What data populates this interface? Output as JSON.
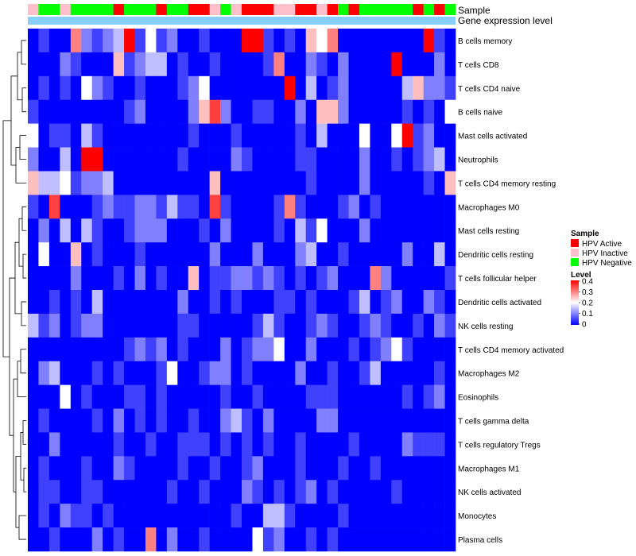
{
  "chart_data": {
    "type": "heatmap",
    "annotation_tracks": [
      {
        "name": "Sample"
      },
      {
        "name": "Gene expression level"
      }
    ],
    "rows": [
      "B cells memory",
      "T cells CD8",
      "T cells CD4 naive",
      "B cells naive",
      "Mast cells activated",
      "Neutrophils",
      "T cells CD4 memory resting",
      "Macrophages M0",
      "Mast cells resting",
      "Dendritic cells resting",
      "T cells follicular helper",
      "Dendritic cells activated",
      "NK cells resting",
      "T cells CD4 memory activated",
      "Macrophages M2",
      "Eosinophils",
      "T cells gamma delta",
      "T cells regulatory  Tregs",
      "Macrophages M1",
      "NK cells activated",
      "Monocytes",
      "Plasma cells"
    ],
    "sample_groups": [
      "I",
      "N",
      "N",
      "I",
      "N",
      "N",
      "N",
      "N",
      "A",
      "N",
      "N",
      "N",
      "A",
      "N",
      "N",
      "A",
      "A",
      "I",
      "N",
      "I",
      "A",
      "A",
      "A",
      "I",
      "I",
      "A",
      "A",
      "I",
      "A",
      "N",
      "A",
      "N",
      "N",
      "N",
      "N",
      "N",
      "A",
      "N",
      "A",
      "N"
    ],
    "values": [
      [
        0.0,
        0.05,
        0.0,
        0.0,
        0.3,
        0.1,
        0.05,
        0.1,
        0.15,
        0.4,
        0.05,
        0.2,
        0.05,
        0.1,
        0.0,
        0.0,
        0.05,
        0.0,
        0.0,
        0.0,
        0.4,
        0.4,
        0.05,
        0.0,
        0.05,
        0.0,
        0.25,
        0.2,
        0.3,
        0.0,
        0.0,
        0.0,
        0.0,
        0.0,
        0.0,
        0.0,
        0.0,
        0.4,
        0.05,
        0.0
      ],
      [
        0.0,
        0.0,
        0.0,
        0.1,
        0.05,
        0.0,
        0.0,
        0.0,
        0.25,
        0.05,
        0.1,
        0.15,
        0.15,
        0.0,
        0.05,
        0.0,
        0.0,
        0.05,
        0.0,
        0.0,
        0.0,
        0.0,
        0.05,
        0.3,
        0.0,
        0.0,
        0.1,
        0.05,
        0.0,
        0.1,
        0.0,
        0.0,
        0.0,
        0.0,
        0.4,
        0.0,
        0.0,
        0.0,
        0.1,
        0.0
      ],
      [
        0.0,
        0.05,
        0.0,
        0.05,
        0.0,
        0.2,
        0.1,
        0.05,
        0.0,
        0.0,
        0.05,
        0.0,
        0.0,
        0.0,
        0.05,
        0.1,
        0.2,
        0.0,
        0.0,
        0.0,
        0.0,
        0.0,
        0.0,
        0.0,
        0.4,
        0.0,
        0.15,
        0.0,
        0.05,
        0.1,
        0.0,
        0.0,
        0.0,
        0.0,
        0.0,
        0.15,
        0.25,
        0.1,
        0.1,
        0.05
      ],
      [
        0.05,
        0.0,
        0.0,
        0.0,
        0.0,
        0.0,
        0.0,
        0.0,
        0.0,
        0.05,
        0.1,
        0.0,
        0.0,
        0.0,
        0.0,
        0.1,
        0.25,
        0.35,
        0.1,
        0.0,
        0.0,
        0.05,
        0.05,
        0.0,
        0.0,
        0.1,
        0.0,
        0.25,
        0.25,
        0.1,
        0.0,
        0.0,
        0.0,
        0.0,
        0.0,
        0.05,
        0.0,
        0.05,
        0.0,
        0.2
      ],
      [
        0.2,
        0.0,
        0.05,
        0.05,
        0.0,
        0.15,
        0.05,
        0.0,
        0.0,
        0.0,
        0.0,
        0.0,
        0.0,
        0.0,
        0.0,
        0.05,
        0.0,
        0.0,
        0.0,
        0.05,
        0.0,
        0.0,
        0.0,
        0.0,
        0.0,
        0.05,
        0.0,
        0.15,
        0.0,
        0.0,
        0.0,
        0.2,
        0.0,
        0.0,
        0.2,
        0.4,
        0.05,
        0.1,
        0.0,
        0.0
      ],
      [
        0.1,
        0.0,
        0.0,
        0.15,
        0.0,
        0.4,
        0.4,
        0.0,
        0.0,
        0.0,
        0.0,
        0.0,
        0.0,
        0.0,
        0.05,
        0.0,
        0.0,
        0.0,
        0.0,
        0.1,
        0.05,
        0.0,
        0.0,
        0.0,
        0.0,
        0.05,
        0.05,
        0.0,
        0.0,
        0.0,
        0.0,
        0.1,
        0.0,
        0.0,
        0.05,
        0.0,
        0.05,
        0.1,
        0.15,
        0.0
      ],
      [
        0.25,
        0.15,
        0.15,
        0.2,
        0.05,
        0.1,
        0.1,
        0.15,
        0.0,
        0.0,
        0.0,
        0.0,
        0.0,
        0.0,
        0.0,
        0.0,
        0.0,
        0.25,
        0.0,
        0.0,
        0.0,
        0.0,
        0.0,
        0.0,
        0.0,
        0.0,
        0.05,
        0.0,
        0.0,
        0.0,
        0.0,
        0.1,
        0.0,
        0.0,
        0.0,
        0.0,
        0.0,
        0.05,
        0.0,
        0.25
      ],
      [
        0.05,
        0.0,
        0.35,
        0.0,
        0.0,
        0.0,
        0.05,
        0.1,
        0.05,
        0.05,
        0.1,
        0.1,
        0.05,
        0.15,
        0.05,
        0.05,
        0.0,
        0.35,
        0.05,
        0.0,
        0.0,
        0.0,
        0.0,
        0.05,
        0.3,
        0.05,
        0.0,
        0.0,
        0.0,
        0.05,
        0.1,
        0.0,
        0.05,
        0.0,
        0.0,
        0.0,
        0.0,
        0.0,
        0.0,
        0.0
      ],
      [
        0.0,
        0.1,
        0.0,
        0.15,
        0.0,
        0.15,
        0.05,
        0.0,
        0.0,
        0.05,
        0.1,
        0.1,
        0.1,
        0.0,
        0.0,
        0.0,
        0.05,
        0.0,
        0.1,
        0.0,
        0.0,
        0.0,
        0.0,
        0.05,
        0.0,
        0.15,
        0.05,
        0.2,
        0.0,
        0.0,
        0.0,
        0.1,
        0.0,
        0.0,
        0.0,
        0.0,
        0.0,
        0.0,
        0.0,
        0.0
      ],
      [
        0.0,
        0.2,
        0.0,
        0.0,
        0.25,
        0.0,
        0.05,
        0.0,
        0.0,
        0.0,
        0.05,
        0.0,
        0.0,
        0.0,
        0.0,
        0.0,
        0.0,
        0.1,
        0.0,
        0.0,
        0.0,
        0.1,
        0.0,
        0.0,
        0.0,
        0.1,
        0.15,
        0.0,
        0.0,
        0.05,
        0.0,
        0.0,
        0.0,
        0.0,
        0.0,
        0.1,
        0.0,
        0.0,
        0.15,
        0.0
      ],
      [
        0.0,
        0.0,
        0.0,
        0.0,
        0.1,
        0.0,
        0.0,
        0.0,
        0.05,
        0.0,
        0.1,
        0.0,
        0.05,
        0.0,
        0.0,
        0.25,
        0.0,
        0.05,
        0.05,
        0.1,
        0.1,
        0.05,
        0.1,
        0.05,
        0.0,
        0.05,
        0.0,
        0.05,
        0.1,
        0.0,
        0.0,
        0.0,
        0.3,
        0.1,
        0.0,
        0.0,
        0.0,
        0.0,
        0.0,
        0.05
      ],
      [
        0.0,
        0.0,
        0.05,
        0.0,
        0.05,
        0.0,
        0.15,
        0.0,
        0.0,
        0.0,
        0.0,
        0.0,
        0.0,
        0.0,
        0.1,
        0.0,
        0.0,
        0.05,
        0.0,
        0.05,
        0.0,
        0.0,
        0.0,
        0.05,
        0.05,
        0.0,
        0.05,
        0.0,
        0.0,
        0.0,
        0.05,
        0.15,
        0.0,
        0.05,
        0.1,
        0.0,
        0.0,
        0.1,
        0.05,
        0.0
      ],
      [
        0.15,
        0.05,
        0.1,
        0.0,
        0.05,
        0.1,
        0.1,
        0.0,
        0.0,
        0.0,
        0.0,
        0.0,
        0.0,
        0.0,
        0.05,
        0.05,
        0.0,
        0.0,
        0.0,
        0.0,
        0.0,
        0.05,
        0.15,
        0.05,
        0.0,
        0.0,
        0.05,
        0.1,
        0.05,
        0.0,
        0.0,
        0.05,
        0.1,
        0.05,
        0.0,
        0.0,
        0.05,
        0.0,
        0.1,
        0.05
      ],
      [
        0.0,
        0.0,
        0.0,
        0.0,
        0.0,
        0.0,
        0.0,
        0.0,
        0.0,
        0.05,
        0.1,
        0.05,
        0.1,
        0.0,
        0.05,
        0.0,
        0.0,
        0.0,
        0.1,
        0.0,
        0.05,
        0.1,
        0.1,
        0.2,
        0.0,
        0.0,
        0.1,
        0.0,
        0.0,
        0.0,
        0.05,
        0.0,
        0.05,
        0.1,
        0.2,
        0.05,
        0.0,
        0.0,
        0.0,
        0.0
      ],
      [
        0.0,
        0.1,
        0.15,
        0.0,
        0.0,
        0.0,
        0.05,
        0.0,
        0.05,
        0.0,
        0.0,
        0.0,
        0.05,
        0.2,
        0.0,
        0.0,
        0.05,
        0.1,
        0.1,
        0.0,
        0.05,
        0.0,
        0.0,
        0.0,
        0.0,
        0.1,
        0.0,
        0.0,
        0.05,
        0.0,
        0.0,
        0.05,
        0.15,
        0.0,
        0.0,
        0.0,
        0.0,
        0.0,
        0.05,
        0.0
      ],
      [
        0.0,
        0.0,
        0.0,
        0.2,
        0.0,
        0.05,
        0.0,
        0.0,
        0.0,
        0.05,
        0.05,
        0.0,
        0.05,
        0.0,
        0.0,
        0.0,
        0.0,
        0.0,
        0.05,
        0.0,
        0.0,
        0.05,
        0.0,
        0.0,
        0.0,
        0.0,
        0.05,
        0.05,
        0.05,
        0.0,
        0.0,
        0.0,
        0.0,
        0.0,
        0.0,
        0.05,
        0.0,
        0.05,
        0.1,
        0.0
      ],
      [
        0.0,
        0.05,
        0.0,
        0.0,
        0.0,
        0.0,
        0.05,
        0.0,
        0.1,
        0.0,
        0.05,
        0.0,
        0.05,
        0.0,
        0.0,
        0.05,
        0.0,
        0.0,
        0.1,
        0.15,
        0.05,
        0.0,
        0.1,
        0.0,
        0.0,
        0.0,
        0.0,
        0.1,
        0.1,
        0.0,
        0.0,
        0.0,
        0.0,
        0.0,
        0.0,
        0.0,
        0.0,
        0.0,
        0.0,
        0.0
      ],
      [
        0.0,
        0.0,
        0.1,
        0.0,
        0.0,
        0.0,
        0.0,
        0.0,
        0.05,
        0.0,
        0.0,
        0.05,
        0.0,
        0.0,
        0.05,
        0.05,
        0.05,
        0.0,
        0.05,
        0.0,
        0.05,
        0.0,
        0.05,
        0.0,
        0.0,
        0.05,
        0.0,
        0.0,
        0.0,
        0.0,
        0.05,
        0.0,
        0.0,
        0.0,
        0.0,
        0.1,
        0.05,
        0.05,
        0.05,
        0.0
      ],
      [
        0.0,
        0.05,
        0.0,
        0.0,
        0.0,
        0.05,
        0.0,
        0.0,
        0.1,
        0.05,
        0.0,
        0.0,
        0.0,
        0.0,
        0.05,
        0.0,
        0.0,
        0.05,
        0.0,
        0.0,
        0.05,
        0.1,
        0.0,
        0.0,
        0.0,
        0.05,
        0.0,
        0.0,
        0.0,
        0.05,
        0.0,
        0.0,
        0.05,
        0.0,
        0.0,
        0.0,
        0.0,
        0.0,
        0.0,
        0.0
      ],
      [
        0.0,
        0.05,
        0.05,
        0.0,
        0.0,
        0.05,
        0.05,
        0.0,
        0.0,
        0.0,
        0.0,
        0.0,
        0.0,
        0.05,
        0.0,
        0.0,
        0.05,
        0.0,
        0.0,
        0.0,
        0.1,
        0.05,
        0.0,
        0.05,
        0.0,
        0.05,
        0.1,
        0.0,
        0.05,
        0.0,
        0.0,
        0.0,
        0.0,
        0.0,
        0.05,
        0.0,
        0.0,
        0.0,
        0.0,
        0.0
      ],
      [
        0.0,
        0.05,
        0.0,
        0.1,
        0.05,
        0.05,
        0.0,
        0.05,
        0.0,
        0.0,
        0.0,
        0.0,
        0.0,
        0.0,
        0.0,
        0.0,
        0.0,
        0.0,
        0.0,
        0.05,
        0.0,
        0.0,
        0.15,
        0.15,
        0.05,
        0.0,
        0.0,
        0.0,
        0.0,
        0.05,
        0.0,
        0.0,
        0.0,
        0.0,
        0.0,
        0.0,
        0.0,
        0.0,
        0.0,
        0.0
      ],
      [
        0.0,
        0.0,
        0.05,
        0.0,
        0.0,
        0.0,
        0.1,
        0.0,
        0.05,
        0.0,
        0.0,
        0.3,
        0.0,
        0.1,
        0.0,
        0.0,
        0.05,
        0.0,
        0.0,
        0.0,
        0.0,
        0.2,
        0.05,
        0.1,
        0.0,
        0.0,
        0.05,
        0.0,
        0.05,
        0.0,
        0.0,
        0.0,
        0.0,
        0.0,
        0.0,
        0.0,
        0.0,
        0.0,
        0.0,
        0.0
      ]
    ],
    "legend_sample": {
      "title": "Sample",
      "items": [
        {
          "key": "A",
          "label": "HPV Active",
          "color": "#ff0000"
        },
        {
          "key": "I",
          "label": "HPV Inactive",
          "color": "#ffc0cb"
        },
        {
          "key": "N",
          "label": "HPV Negative",
          "color": "#00ff00"
        }
      ]
    },
    "legend_level": {
      "title": "Level",
      "ticks": [
        "0.4",
        "0.3",
        "0.2",
        "0.1",
        "0"
      ],
      "range": [
        0,
        0.4
      ]
    },
    "colors": {
      "low": "#0000ff",
      "mid": "#ffffff",
      "high": "#ff0000",
      "gene_track": "#87cefa"
    }
  }
}
